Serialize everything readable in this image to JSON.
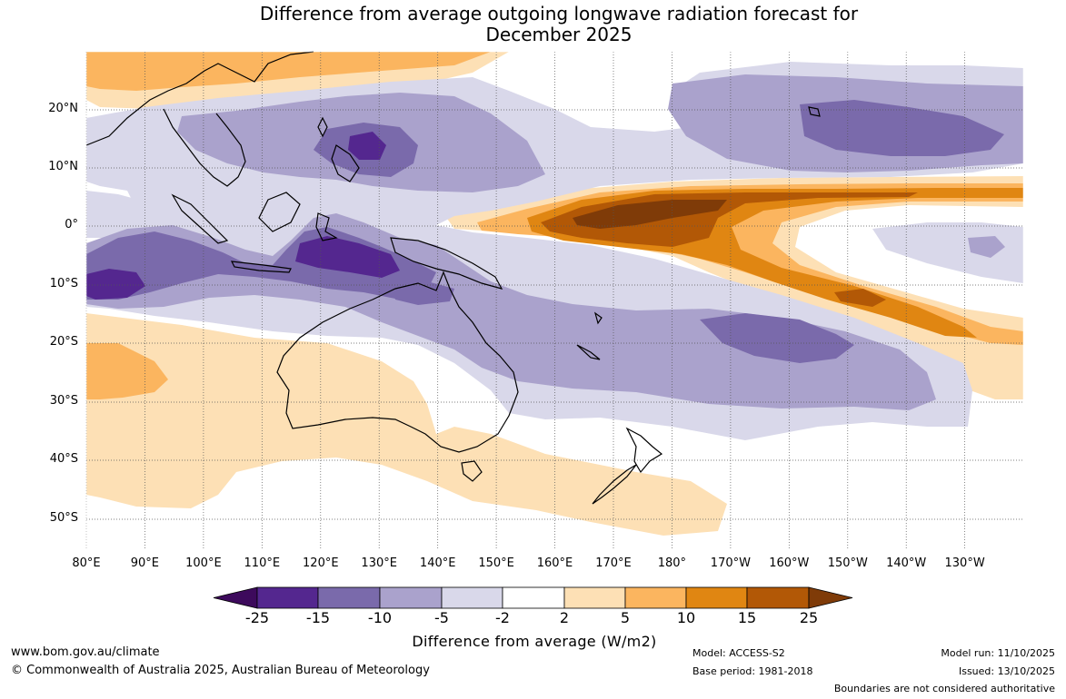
{
  "title_line1": "Difference from average outgoing longwave radiation forecast for",
  "title_line2": "December 2025",
  "lat_labels": [
    "20°N",
    "10°N",
    "0°",
    "10°S",
    "20°S",
    "30°S",
    "40°S",
    "50°S"
  ],
  "lon_labels": [
    "80°E",
    "90°E",
    "100°E",
    "110°E",
    "120°E",
    "130°E",
    "140°E",
    "150°E",
    "160°E",
    "170°E",
    "180°",
    "170°W",
    "160°W",
    "150°W",
    "140°W",
    "130°W"
  ],
  "colorbar": {
    "labels": [
      "-25",
      "-15",
      "-10",
      "-5",
      "-2",
      "2",
      "5",
      "10",
      "15",
      "25"
    ],
    "colors": [
      "#3d0a5c",
      "#54278f",
      "#7a6aab",
      "#aaa2cc",
      "#d9d8ea",
      "#ffffff",
      "#fde0b5",
      "#fbb55f",
      "#e08612",
      "#b25806",
      "#7f3b08"
    ],
    "title": "Difference from average (W/m2)"
  },
  "footer": {
    "website": "www.bom.gov.au/climate",
    "copyright": "© Commonwealth of Australia 2025, Australian Bureau of Meteorology",
    "model": "Model: ACCESS-S2",
    "base_period": "Base period: 1981-2018",
    "model_run": "Model run: 11/10/2025",
    "issued": "Issued: 13/10/2025",
    "disclaimer": "Boundaries are not considered authoritative"
  }
}
